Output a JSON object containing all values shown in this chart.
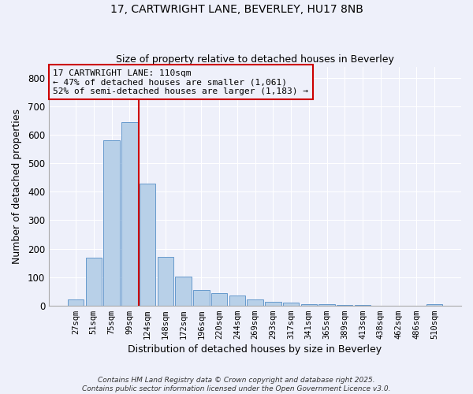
{
  "title1": "17, CARTWRIGHT LANE, BEVERLEY, HU17 8NB",
  "title2": "Size of property relative to detached houses in Beverley",
  "xlabel": "Distribution of detached houses by size in Beverley",
  "ylabel": "Number of detached properties",
  "categories": [
    "27sqm",
    "51sqm",
    "75sqm",
    "99sqm",
    "124sqm",
    "148sqm",
    "172sqm",
    "196sqm",
    "220sqm",
    "244sqm",
    "269sqm",
    "293sqm",
    "317sqm",
    "341sqm",
    "365sqm",
    "389sqm",
    "413sqm",
    "438sqm",
    "462sqm",
    "486sqm",
    "510sqm"
  ],
  "values": [
    20,
    168,
    582,
    645,
    430,
    170,
    103,
    55,
    44,
    34,
    20,
    14,
    10,
    6,
    4,
    2,
    1,
    0,
    0,
    0,
    5
  ],
  "bar_color": "#b8d0e8",
  "bar_edgecolor": "#6699cc",
  "vline_x": 3.5,
  "vline_color": "#cc0000",
  "annotation_text": "17 CARTWRIGHT LANE: 110sqm\n← 47% of detached houses are smaller (1,061)\n52% of semi-detached houses are larger (1,183) →",
  "annotation_box_color": "#cc0000",
  "bg_color": "#eef0fa",
  "grid_color": "#ffffff",
  "footer1": "Contains HM Land Registry data © Crown copyright and database right 2025.",
  "footer2": "Contains public sector information licensed under the Open Government Licence v3.0.",
  "ylim": [
    0,
    840
  ],
  "yticks": [
    0,
    100,
    200,
    300,
    400,
    500,
    600,
    700,
    800
  ]
}
